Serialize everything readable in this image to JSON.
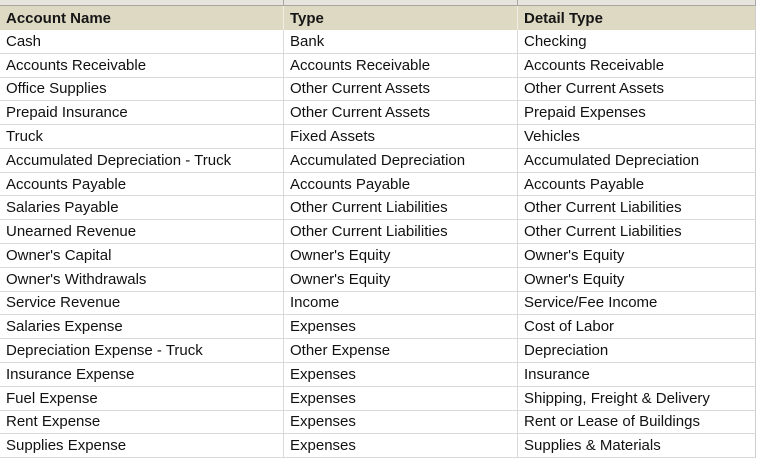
{
  "table": {
    "columns": [
      {
        "label": "Account Name"
      },
      {
        "label": "Type"
      },
      {
        "label": "Detail Type"
      }
    ],
    "rows": [
      [
        "Cash",
        "Bank",
        "Checking"
      ],
      [
        "Accounts Receivable",
        "Accounts Receivable",
        "Accounts Receivable"
      ],
      [
        "Office Supplies",
        "Other Current Assets",
        "Other Current Assets"
      ],
      [
        "Prepaid Insurance",
        "Other Current Assets",
        "Prepaid Expenses"
      ],
      [
        "Truck",
        "Fixed Assets",
        "Vehicles"
      ],
      [
        "Accumulated Depreciation - Truck",
        "Accumulated Depreciation",
        "Accumulated Depreciation"
      ],
      [
        "Accounts Payable",
        "Accounts Payable",
        "Accounts Payable"
      ],
      [
        "Salaries Payable",
        "Other Current Liabilities",
        "Other Current Liabilities"
      ],
      [
        "Unearned Revenue",
        "Other Current Liabilities",
        "Other Current Liabilities"
      ],
      [
        "Owner's Capital",
        "Owner's Equity",
        "Owner's Equity"
      ],
      [
        "Owner's Withdrawals",
        "Owner's Equity",
        "Owner's Equity"
      ],
      [
        "Service Revenue",
        "Income",
        "Service/Fee Income"
      ],
      [
        "Salaries Expense",
        "Expenses",
        "Cost of Labor"
      ],
      [
        "Depreciation Expense - Truck",
        "Other Expense",
        "Depreciation"
      ],
      [
        "Insurance Expense",
        "Expenses",
        "Insurance"
      ],
      [
        "Fuel Expense",
        "Expenses",
        "Shipping, Freight & Delivery"
      ],
      [
        "Rent Expense",
        "Expenses",
        "Rent or Lease of Buildings"
      ],
      [
        "Supplies Expense",
        "Expenses",
        "Supplies & Materials"
      ]
    ]
  },
  "colors": {
    "header_bg": "#ddd9c3",
    "header_divider": "#f0eee5",
    "strip_bg": "#e6e4dc",
    "strip_border": "#a8a7a2",
    "grid_line": "#d9d9d9",
    "edge_line": "#cfcdcd",
    "text": "#111111"
  }
}
